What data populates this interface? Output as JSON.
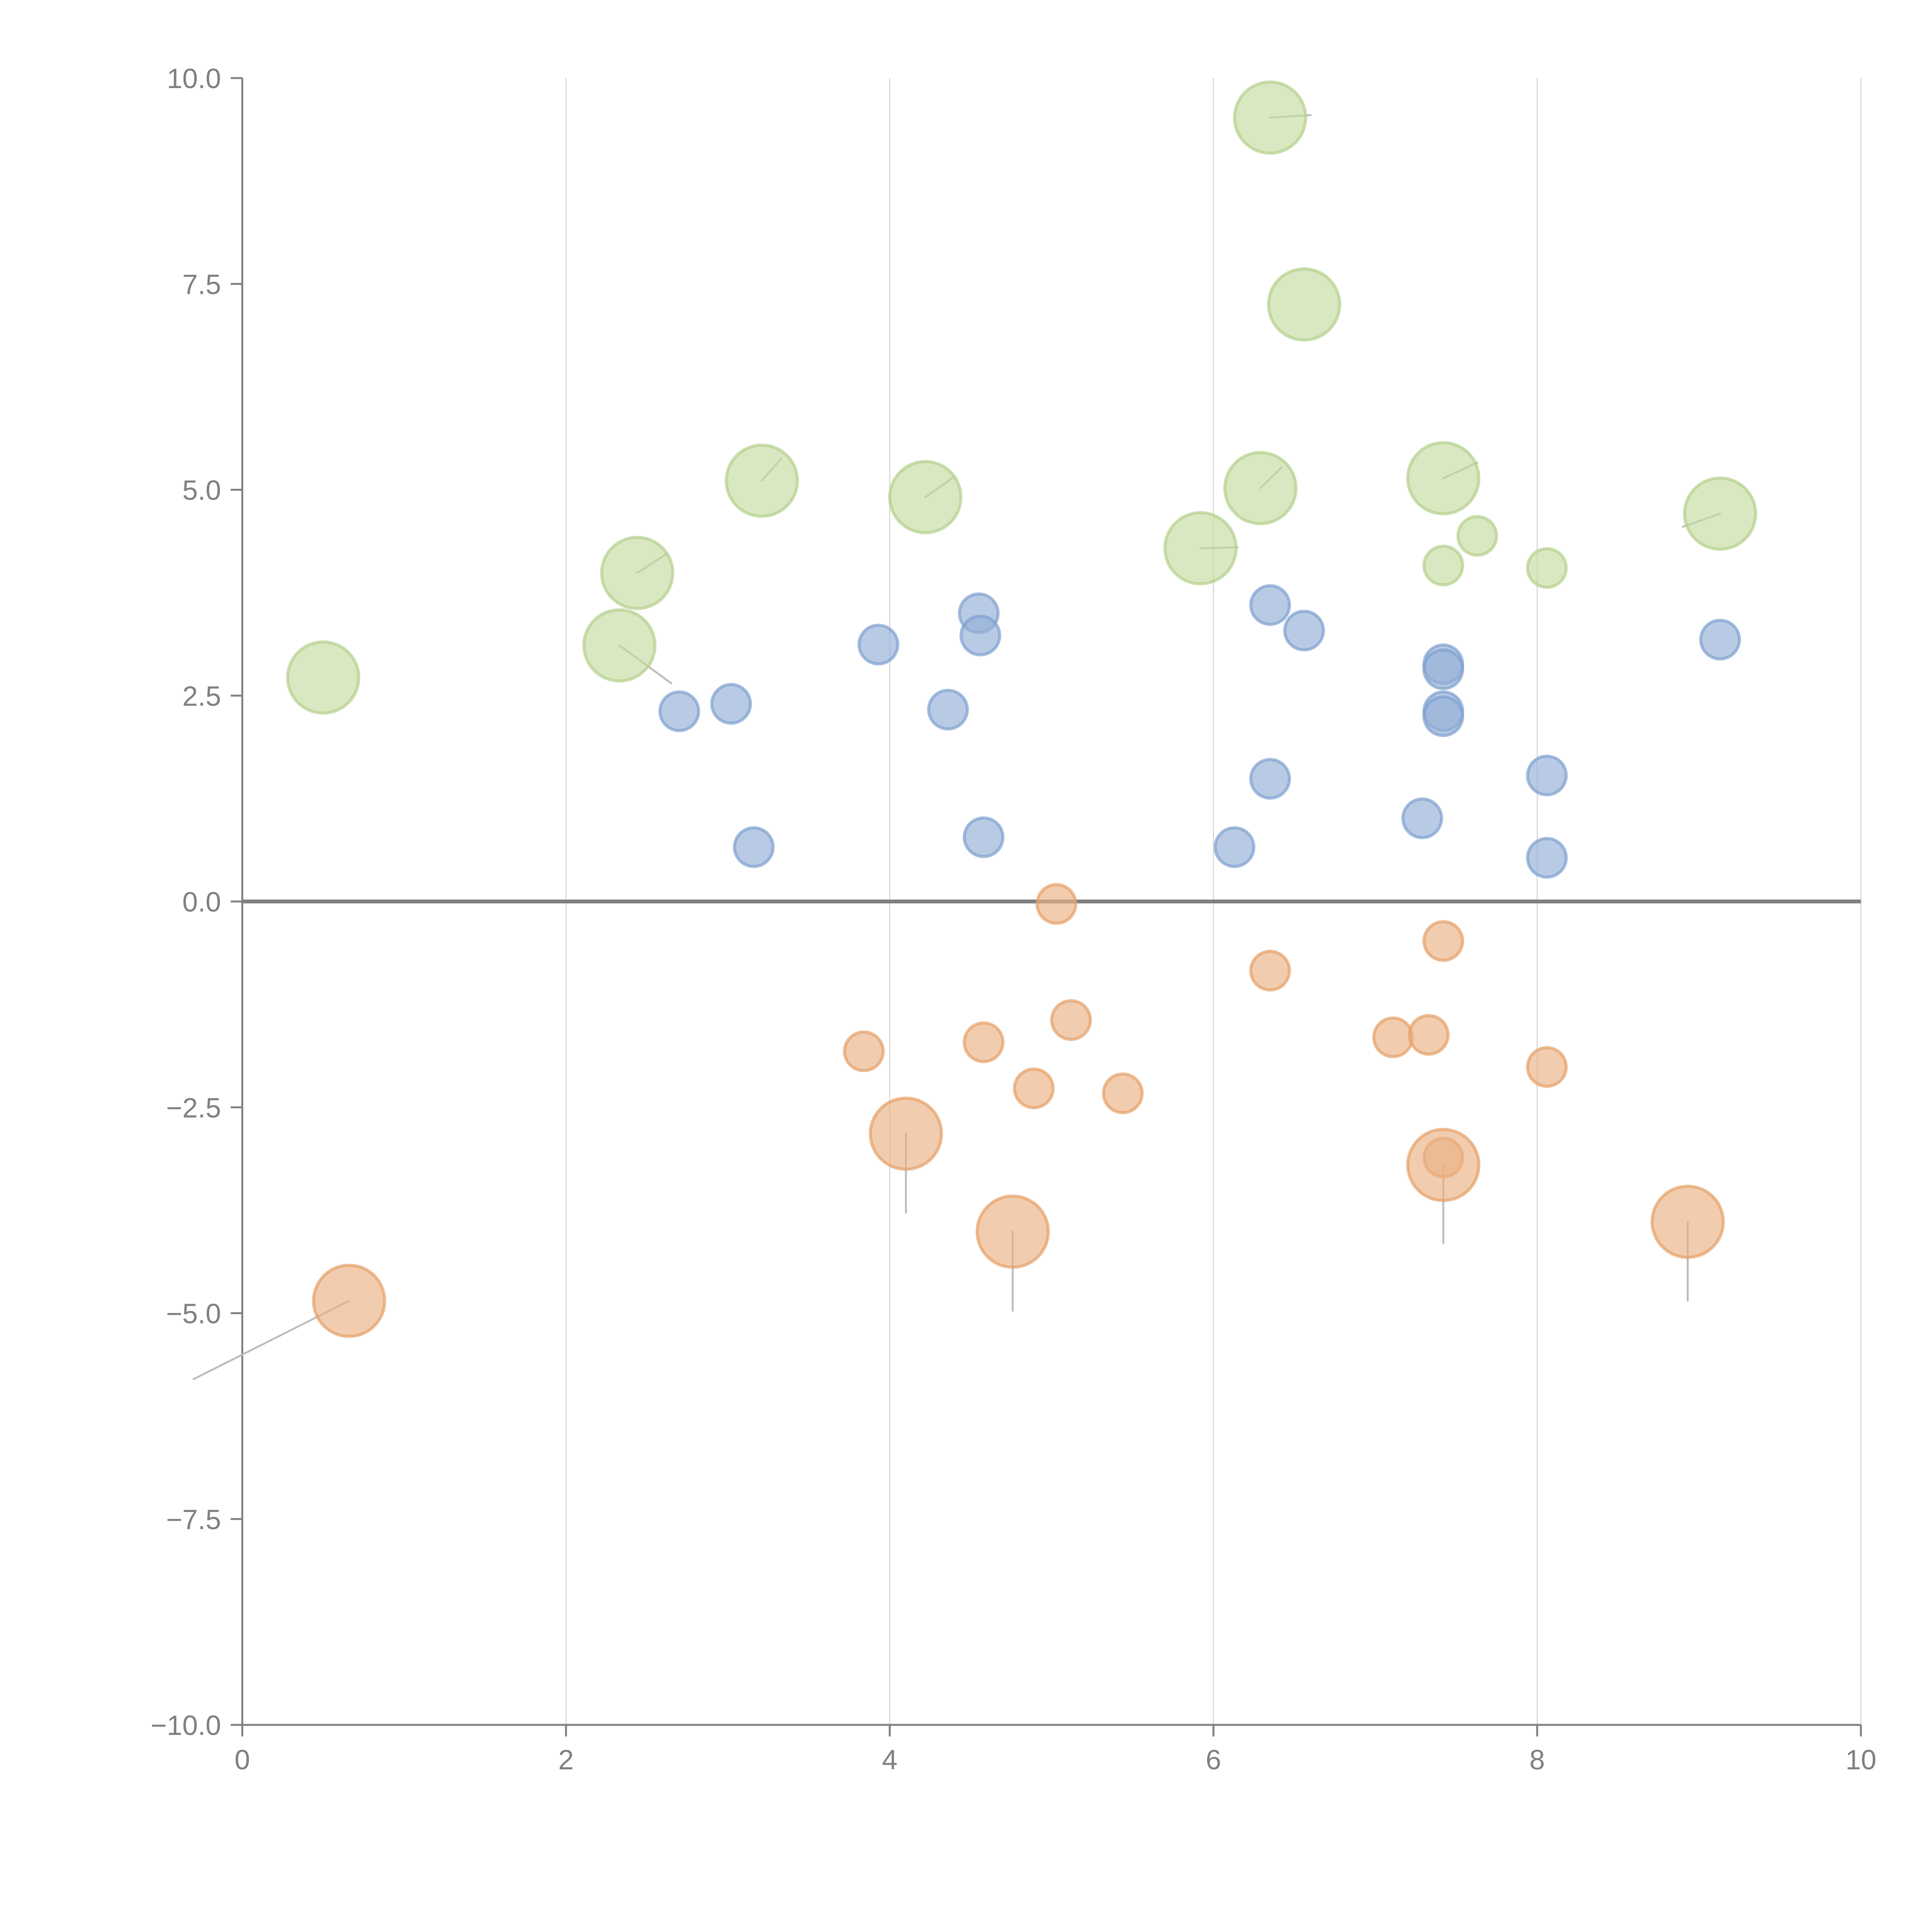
{
  "chart_data": {
    "type": "scatter",
    "title": "",
    "xlabel": "",
    "ylabel": "",
    "xlim": [
      0,
      10
    ],
    "ylim": [
      -10,
      10
    ],
    "x_ticks": [
      "0",
      "2",
      "4",
      "6",
      "8",
      "10"
    ],
    "x_tick_values": [
      0,
      2,
      4,
      6,
      8,
      10
    ],
    "y_ticks": [
      "10.0",
      "7.5",
      "5.0",
      "2.5",
      "0.0",
      "−2.5",
      "−5.0",
      "−7.5",
      "−10.0"
    ],
    "y_tick_values": [
      10,
      7.5,
      5,
      2.5,
      0,
      -2.5,
      -5,
      -7.5,
      -10
    ],
    "grid": "vertical",
    "zero_line": true,
    "legend": "none",
    "colors": {
      "green": "#c5dca0",
      "blue": "#94afd6",
      "orange": "#eab184",
      "axis": "#808080",
      "grid": "#d9d9d9"
    },
    "series": [
      {
        "name": "green",
        "color": "#c5dca0",
        "stroke": "#b4d08c",
        "points": [
          {
            "x": 0.5,
            "y": 2.72,
            "size": "large"
          },
          {
            "x": 2.44,
            "y": 3.99,
            "size": "large"
          },
          {
            "x": 2.33,
            "y": 3.11,
            "size": "large"
          },
          {
            "x": 3.21,
            "y": 5.11,
            "size": "large"
          },
          {
            "x": 4.22,
            "y": 4.91,
            "size": "large"
          },
          {
            "x": 5.92,
            "y": 4.29,
            "size": "large"
          },
          {
            "x": 6.29,
            "y": 5.02,
            "size": "large"
          },
          {
            "x": 6.35,
            "y": 9.52,
            "size": "large"
          },
          {
            "x": 6.56,
            "y": 7.25,
            "size": "large"
          },
          {
            "x": 7.42,
            "y": 5.14,
            "size": "large"
          },
          {
            "x": 9.13,
            "y": 4.71,
            "size": "large"
          },
          {
            "x": 7.63,
            "y": 4.44,
            "size": "small"
          },
          {
            "x": 7.42,
            "y": 4.08,
            "size": "small"
          },
          {
            "x": 8.06,
            "y": 4.05,
            "size": "small"
          }
        ]
      },
      {
        "name": "blue",
        "color": "#94afd6",
        "stroke": "#7e9fd0",
        "points": [
          {
            "x": 2.7,
            "y": 2.31,
            "size": "small"
          },
          {
            "x": 3.02,
            "y": 2.4,
            "size": "small"
          },
          {
            "x": 3.16,
            "y": 0.66,
            "size": "small"
          },
          {
            "x": 3.93,
            "y": 3.12,
            "size": "small"
          },
          {
            "x": 4.55,
            "y": 3.5,
            "size": "small"
          },
          {
            "x": 4.56,
            "y": 3.23,
            "size": "small"
          },
          {
            "x": 4.36,
            "y": 2.33,
            "size": "small"
          },
          {
            "x": 4.58,
            "y": 0.78,
            "size": "small"
          },
          {
            "x": 6.35,
            "y": 3.6,
            "size": "small"
          },
          {
            "x": 6.56,
            "y": 3.29,
            "size": "small"
          },
          {
            "x": 6.35,
            "y": 1.49,
            "size": "small"
          },
          {
            "x": 6.13,
            "y": 0.66,
            "size": "small"
          },
          {
            "x": 7.42,
            "y": 2.88,
            "size": "small"
          },
          {
            "x": 7.42,
            "y": 2.82,
            "size": "small"
          },
          {
            "x": 7.42,
            "y": 2.31,
            "size": "small"
          },
          {
            "x": 7.42,
            "y": 2.25,
            "size": "small"
          },
          {
            "x": 7.29,
            "y": 1.01,
            "size": "small"
          },
          {
            "x": 8.06,
            "y": 1.53,
            "size": "small"
          },
          {
            "x": 8.06,
            "y": 0.53,
            "size": "small"
          },
          {
            "x": 9.13,
            "y": 3.18,
            "size": "small"
          }
        ]
      },
      {
        "name": "orange",
        "color": "#eab184",
        "stroke": "#e6a066",
        "points": [
          {
            "x": 5.03,
            "y": -0.03,
            "size": "small"
          },
          {
            "x": 3.84,
            "y": -1.82,
            "size": "small"
          },
          {
            "x": 4.58,
            "y": -1.71,
            "size": "small"
          },
          {
            "x": 5.12,
            "y": -1.44,
            "size": "small"
          },
          {
            "x": 4.89,
            "y": -2.27,
            "size": "small"
          },
          {
            "x": 5.44,
            "y": -2.33,
            "size": "small"
          },
          {
            "x": 6.35,
            "y": -0.84,
            "size": "small"
          },
          {
            "x": 7.42,
            "y": -0.48,
            "size": "small"
          },
          {
            "x": 7.11,
            "y": -1.65,
            "size": "small"
          },
          {
            "x": 7.33,
            "y": -1.62,
            "size": "small"
          },
          {
            "x": 8.06,
            "y": -2.01,
            "size": "small"
          },
          {
            "x": 7.42,
            "y": -3.11,
            "size": "small"
          },
          {
            "x": 0.66,
            "y": -4.85,
            "size": "large"
          },
          {
            "x": 4.1,
            "y": -2.82,
            "size": "large"
          },
          {
            "x": 4.76,
            "y": -4.01,
            "size": "large"
          },
          {
            "x": 7.42,
            "y": -3.2,
            "size": "large"
          },
          {
            "x": 8.93,
            "y": -3.89,
            "size": "large"
          }
        ]
      }
    ],
    "leaders": [
      {
        "series": "green",
        "from": [
          2.44,
          3.99
        ],
        "to": [
          2.62,
          4.22
        ],
        "color": "light"
      },
      {
        "series": "green",
        "from": [
          2.33,
          3.11
        ],
        "to": [
          2.65,
          2.65
        ],
        "color": "light"
      },
      {
        "series": "green",
        "from": [
          3.21,
          5.11
        ],
        "to": [
          3.33,
          5.38
        ],
        "color": "light"
      },
      {
        "series": "green",
        "from": [
          4.22,
          4.91
        ],
        "to": [
          4.4,
          5.16
        ],
        "color": "light"
      },
      {
        "series": "green",
        "from": [
          5.92,
          4.29
        ],
        "to": [
          6.15,
          4.3
        ],
        "color": "light"
      },
      {
        "series": "green",
        "from": [
          6.29,
          5.02
        ],
        "to": [
          6.42,
          5.27
        ],
        "color": "light"
      },
      {
        "series": "green",
        "from": [
          6.35,
          9.52
        ],
        "to": [
          6.6,
          9.55
        ],
        "color": "light"
      },
      {
        "series": "green",
        "from": [
          7.42,
          5.14
        ],
        "to": [
          7.63,
          5.33
        ],
        "color": "light"
      },
      {
        "series": "green",
        "from": [
          9.13,
          4.71
        ],
        "to": [
          8.9,
          4.55
        ],
        "color": "light"
      },
      {
        "series": "orange",
        "from": [
          0.66,
          -4.85
        ],
        "to": [
          -0.3,
          -5.8
        ],
        "color": "gray"
      },
      {
        "series": "orange",
        "from": [
          4.1,
          -2.82
        ],
        "to": [
          4.1,
          -3.78
        ],
        "color": "gray"
      },
      {
        "series": "orange",
        "from": [
          4.76,
          -4.01
        ],
        "to": [
          4.76,
          -4.97
        ],
        "color": "gray"
      },
      {
        "series": "orange",
        "from": [
          7.42,
          -3.2
        ],
        "to": [
          7.42,
          -4.15
        ],
        "color": "gray"
      },
      {
        "series": "orange",
        "from": [
          8.93,
          -3.89
        ],
        "to": [
          8.93,
          -4.85
        ],
        "color": "gray"
      }
    ]
  }
}
